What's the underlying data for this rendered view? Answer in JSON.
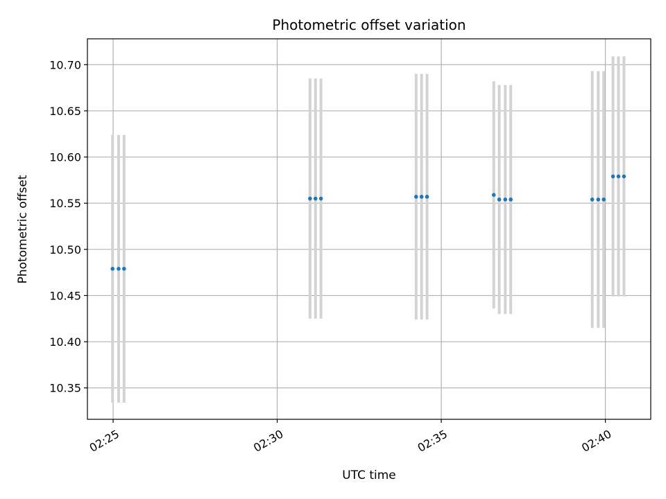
{
  "chart_data": {
    "type": "scatter",
    "title": "Photometric offset variation",
    "xlabel": "UTC time",
    "ylabel": "Photometric offset",
    "x_ticks": [
      "02:25",
      "02:30",
      "02:35",
      "02:40"
    ],
    "x_tick_minutes": [
      25,
      30,
      35,
      40
    ],
    "y_ticks": [
      "10.35",
      "10.40",
      "10.45",
      "10.50",
      "10.55",
      "10.60",
      "10.65",
      "10.70"
    ],
    "xlim": [
      "02:24:13",
      "02:41:23"
    ],
    "ylim": [
      10.316,
      10.728
    ],
    "grid": true,
    "legend": "none",
    "colors": {
      "points": "#1f77b4",
      "errorbars": "#d3d3d3",
      "grid": "#b0b0b0"
    },
    "series": [
      {
        "x": [
          "02:24:59",
          "02:25:10",
          "02:25:20",
          "02:31:00",
          "02:31:10",
          "02:31:20",
          "02:34:14",
          "02:34:24",
          "02:34:34",
          "02:36:36",
          "02:36:46",
          "02:36:57",
          "02:37:07",
          "02:39:36",
          "02:39:47",
          "02:39:57",
          "02:40:14",
          "02:40:24",
          "02:40:34"
        ],
        "y": [
          10.479,
          10.479,
          10.479,
          10.555,
          10.555,
          10.555,
          10.557,
          10.557,
          10.557,
          10.559,
          10.554,
          10.554,
          10.554,
          10.554,
          10.554,
          10.554,
          10.579,
          10.579,
          10.579
        ],
        "yerr": [
          0.145,
          0.145,
          0.145,
          0.13,
          0.13,
          0.13,
          0.133,
          0.133,
          0.133,
          0.123,
          0.124,
          0.124,
          0.124,
          0.139,
          0.139,
          0.139,
          0.13,
          0.13,
          0.13
        ]
      }
    ]
  }
}
